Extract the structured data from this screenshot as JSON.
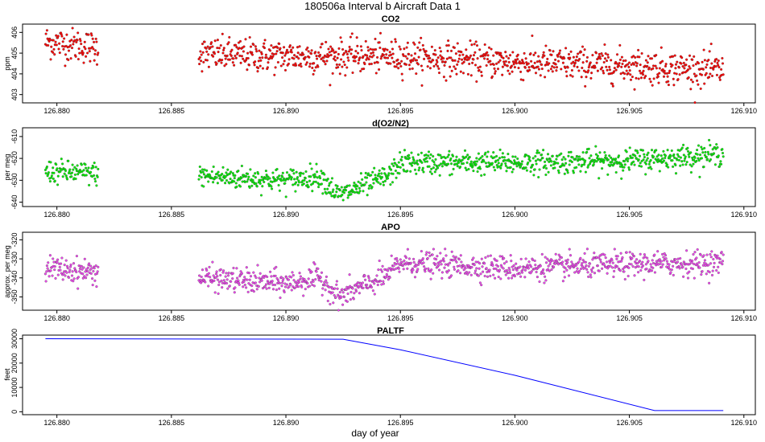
{
  "figure": {
    "title": "180506a   Interval b Aircraft Data 1",
    "xlabel": "day of year"
  },
  "colors": {
    "co2": "#ff0000",
    "o2n2": "#00ee00",
    "apo": "#ee44ee",
    "paltf": "#0000ff",
    "outline": "#000000"
  },
  "chart_data": [
    {
      "type": "scatter",
      "title": "CO2",
      "ylabel": "ppm",
      "xlim": [
        126.8785,
        126.9105
      ],
      "ylim": [
        402.6,
        406.4
      ],
      "xticks": [
        126.88,
        126.885,
        126.89,
        126.895,
        126.9,
        126.905,
        126.91
      ],
      "xtick_labels": [
        "126.880",
        "126.885",
        "126.890",
        "126.895",
        "126.900",
        "126.905",
        "126.910"
      ],
      "yticks": [
        403,
        404,
        405,
        406
      ],
      "ytick_labels": [
        "403",
        "404",
        "405",
        "406"
      ],
      "series": [
        {
          "segments": [
            [
              126.8795,
              126.8818
            ],
            [
              126.8862,
              126.9091
            ]
          ],
          "trend": [
            [
              126.8795,
              405.55
            ],
            [
              126.8818,
              405.25
            ],
            [
              126.8862,
              404.95
            ],
            [
              126.89,
              404.85
            ],
            [
              126.895,
              404.85
            ],
            [
              126.9,
              404.55
            ],
            [
              126.905,
              404.4
            ],
            [
              126.9091,
              404.15
            ]
          ],
          "scatter_sd": 0.4,
          "count": 1100
        }
      ]
    },
    {
      "type": "scatter",
      "title": "d(O2/N2)",
      "ylabel": "per meg",
      "xlim": [
        126.8785,
        126.9105
      ],
      "ylim": [
        -642,
        -606
      ],
      "xticks": [
        126.88,
        126.885,
        126.89,
        126.895,
        126.9,
        126.905,
        126.91
      ],
      "xtick_labels": [
        "126.880",
        "126.885",
        "126.890",
        "126.895",
        "126.900",
        "126.905",
        "126.910"
      ],
      "yticks": [
        -640,
        -630,
        -620,
        -610
      ],
      "ytick_labels": [
        "-640",
        "-630",
        "-620",
        "-610"
      ],
      "series": [
        {
          "segments": [
            [
              126.8795,
              126.8818
            ],
            [
              126.8862,
              126.9091
            ]
          ],
          "trend": [
            [
              126.8795,
              -626
            ],
            [
              126.8818,
              -627
            ],
            [
              126.8862,
              -628
            ],
            [
              126.89,
              -630
            ],
            [
              126.8915,
              -628
            ],
            [
              126.8923,
              -637
            ],
            [
              126.8935,
              -632
            ],
            [
              126.8945,
              -628
            ],
            [
              126.895,
              -622
            ],
            [
              126.9,
              -622
            ],
            [
              126.905,
              -621
            ],
            [
              126.9091,
              -618
            ]
          ],
          "scatter_sd": 2.6,
          "count": 1100
        }
      ]
    },
    {
      "type": "scatter",
      "title": "APO",
      "ylabel": "approx. per meg",
      "xlim": [
        126.8785,
        126.9105
      ],
      "ylim": [
        -357,
        -316
      ],
      "xticks": [
        126.88,
        126.885,
        126.89,
        126.895,
        126.9,
        126.905,
        126.91
      ],
      "xtick_labels": [
        "126.880",
        "126.885",
        "126.890",
        "126.895",
        "126.900",
        "126.905",
        "126.910"
      ],
      "yticks": [
        -350,
        -340,
        -330,
        -320
      ],
      "ytick_labels": [
        "-350",
        "-340",
        "-330",
        "-320"
      ],
      "series": [
        {
          "segments": [
            [
              126.8795,
              126.8818
            ],
            [
              126.8862,
              126.9091
            ]
          ],
          "trend": [
            [
              126.8795,
              -335
            ],
            [
              126.8818,
              -337
            ],
            [
              126.8862,
              -340
            ],
            [
              126.89,
              -343
            ],
            [
              126.8915,
              -340
            ],
            [
              126.8923,
              -350
            ],
            [
              126.8935,
              -344
            ],
            [
              126.8945,
              -338
            ],
            [
              126.895,
              -332
            ],
            [
              126.9,
              -335
            ],
            [
              126.905,
              -333
            ],
            [
              126.9091,
              -332
            ]
          ],
          "scatter_sd": 3.2,
          "count": 1100
        }
      ]
    },
    {
      "type": "line",
      "title": "PALTF",
      "ylabel": "feet",
      "xlim": [
        126.8785,
        126.9105
      ],
      "ylim": [
        -1200,
        31500
      ],
      "xticks": [
        126.88,
        126.885,
        126.89,
        126.895,
        126.9,
        126.905,
        126.91
      ],
      "xtick_labels": [
        "126.880",
        "126.885",
        "126.890",
        "126.895",
        "126.900",
        "126.905",
        "126.910"
      ],
      "yticks": [
        0,
        10000,
        20000,
        30000
      ],
      "ytick_labels": [
        "0",
        "10000",
        "20000",
        "30000"
      ],
      "series": [
        {
          "x": [
            126.8795,
            126.8925,
            126.895,
            126.9,
            126.9061,
            126.9091
          ],
          "y": [
            30000,
            29800,
            25500,
            15000,
            500,
            500
          ]
        }
      ]
    }
  ]
}
